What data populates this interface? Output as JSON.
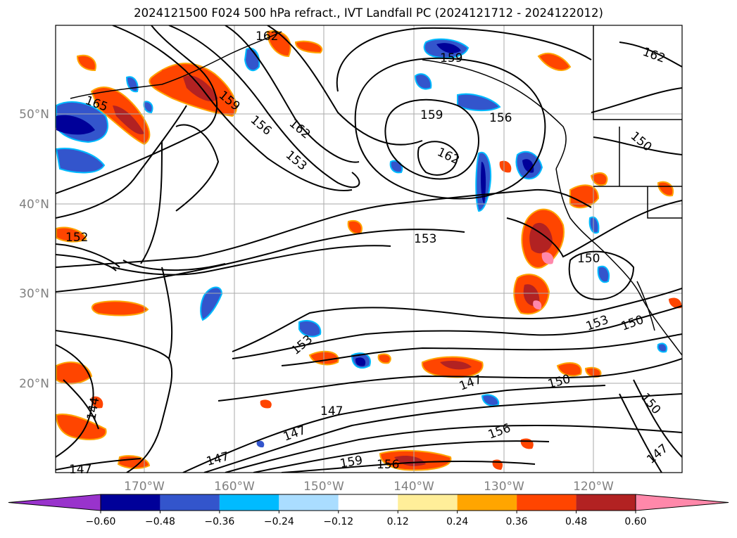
{
  "title": "2024121500 F024 500 hPa refract., IVT Landfall PC (2024121712 - 2024122012)",
  "latitude_labels": [
    "20°N",
    "30°N",
    "40°N",
    "50°N"
  ],
  "longitude_labels": [
    "170°W",
    "160°W",
    "150°W",
    "140°W",
    "130°W",
    "120°W"
  ],
  "colorbar": {
    "tick_labels": [
      "−0.60",
      "−0.48",
      "−0.36",
      "−0.24",
      "−0.12",
      "0.12",
      "0.24",
      "0.36",
      "0.48",
      "0.60"
    ],
    "colors": [
      "#9933cc",
      "#000099",
      "#3355cc",
      "#00bbff",
      "#aaddff",
      "#ffffff",
      "#ffee99",
      "#ffa500",
      "#ff4500",
      "#b22222",
      "#ff88aa",
      "#ff88aa"
    ]
  },
  "contour_labels": [
    "162",
    "165",
    "159",
    "156",
    "153",
    "162",
    "159",
    "156",
    "159",
    "162",
    "162",
    "152",
    "153",
    "150",
    "153",
    "150",
    "150",
    "147",
    "150",
    "153",
    "147",
    "156",
    "159",
    "156",
    "147",
    "144",
    "147",
    "147",
    "150",
    "147"
  ],
  "colors": {
    "grid": "#aaaaaa",
    "contour": "#000000",
    "coast": "#000000",
    "axis_label": "#808080"
  }
}
